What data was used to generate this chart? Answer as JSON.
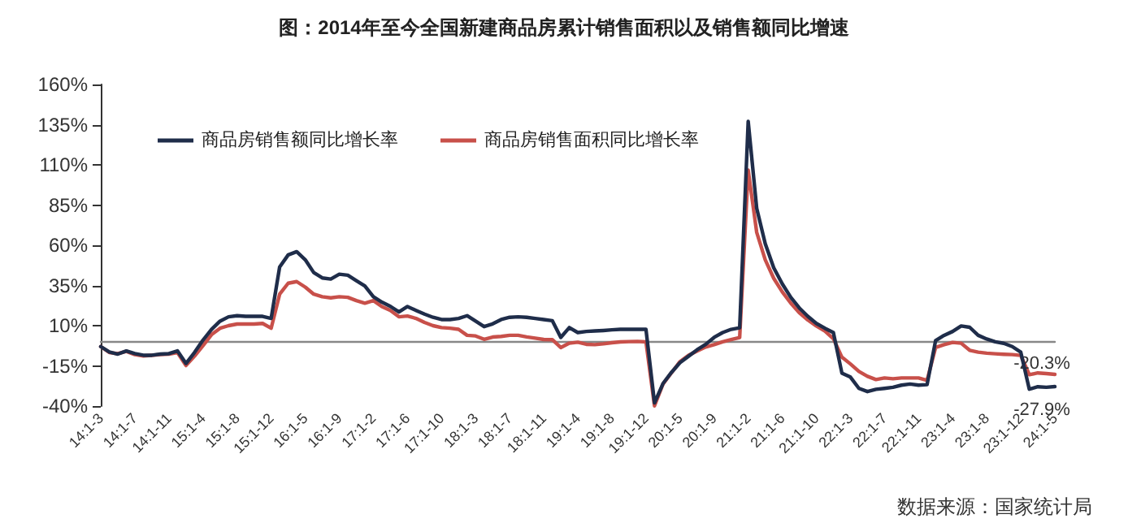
{
  "chart_data": {
    "type": "line",
    "title": "图：2014年至今全国新建商品房累计销售面积以及销售额同比增速",
    "annotations": [
      "数据来源：国家统计局"
    ],
    "categories": [
      "14:1-3",
      null,
      null,
      null,
      "14:1-7",
      null,
      null,
      null,
      "14:1-11",
      null,
      null,
      null,
      "15:1-4",
      null,
      null,
      null,
      "15:1-8",
      null,
      null,
      null,
      "15:1-12",
      null,
      null,
      null,
      "16:1-5",
      null,
      null,
      null,
      "16:1-9",
      null,
      null,
      null,
      "17:1-2",
      null,
      null,
      null,
      "17:1-6",
      null,
      null,
      null,
      "17:1-10",
      null,
      null,
      null,
      "18:1-3",
      null,
      null,
      null,
      "18:1-7",
      null,
      null,
      null,
      "18:1-11",
      null,
      null,
      null,
      "19:1-4",
      null,
      null,
      null,
      "19:1-8",
      null,
      null,
      null,
      "19:1-12",
      null,
      null,
      null,
      "20:1-5",
      null,
      null,
      null,
      "20:1-9",
      null,
      null,
      null,
      "21:1-2",
      null,
      null,
      null,
      "21:1-6",
      null,
      null,
      null,
      "21:1-10",
      null,
      null,
      null,
      "22:1-3",
      null,
      null,
      null,
      "22:1-7",
      null,
      null,
      null,
      "22:1-11",
      null,
      null,
      null,
      "23:1-4",
      null,
      null,
      null,
      "23:1-8",
      null,
      null,
      null,
      "23:1-12",
      null,
      null,
      null,
      "24:1-5"
    ],
    "series": [
      {
        "name": "商品房销售额同比增长率",
        "color": "#1f2d4a",
        "values": [
          -3,
          -6.4,
          -7.7,
          -5.7,
          -7.4,
          -8.4,
          -8.4,
          -7.7,
          -7.4,
          -5.7,
          -13.5,
          -6.7,
          1,
          7.7,
          12.8,
          15.5,
          16.2,
          15.8,
          15.8,
          15.8,
          14.5,
          46.5,
          54,
          56,
          51,
          43,
          39.7,
          39,
          42,
          41.4,
          38,
          34.7,
          28,
          24.6,
          22,
          18.5,
          21.9,
          19.5,
          17.2,
          15.2,
          13.8,
          13.8,
          14.5,
          16.2,
          12.8,
          9.4,
          11.1,
          13.8,
          15.2,
          15.5,
          15.2,
          14.5,
          13.8,
          13.1,
          2.7,
          8.8,
          5.7,
          6.4,
          6.7,
          7,
          7.4,
          7.7,
          7.7,
          7.7,
          7.7,
          -38,
          -26,
          -19,
          -13,
          -9,
          -5,
          -1.7,
          2.7,
          5.7,
          7.7,
          8.7,
          137,
          83,
          61,
          46,
          36,
          27.6,
          21,
          15.8,
          11.4,
          8.4,
          5.7,
          -19.5,
          -22,
          -29,
          -31,
          -29.6,
          -29,
          -28.3,
          -27,
          -26.3,
          -27,
          -26.7,
          0.7,
          4,
          6.4,
          9.8,
          9,
          4,
          1.7,
          0,
          -1,
          -3,
          -6.5,
          -29.5,
          -28,
          -28.3,
          -27.9
        ],
        "value_labels": [
          null,
          null,
          null,
          null,
          null,
          null,
          null,
          null,
          null,
          null,
          null,
          null,
          null,
          null,
          null,
          null,
          null,
          null,
          null,
          null,
          null,
          null,
          null,
          null,
          null,
          null,
          null,
          null,
          null,
          null,
          null,
          null,
          null,
          null,
          null,
          null,
          null,
          null,
          null,
          null,
          null,
          null,
          null,
          null,
          null,
          null,
          null,
          null,
          null,
          null,
          null,
          null,
          null,
          null,
          null,
          null,
          null,
          null,
          null,
          null,
          null,
          null,
          null,
          null,
          null,
          null,
          null,
          null,
          null,
          null,
          null,
          null,
          null,
          null,
          null,
          null,
          null,
          null,
          null,
          null,
          null,
          null,
          null,
          null,
          null,
          null,
          null,
          null,
          null,
          null,
          null,
          null,
          null,
          null,
          null,
          null,
          null,
          null,
          null,
          null,
          null,
          null,
          null,
          null,
          null,
          null,
          null,
          null,
          null,
          null,
          null,
          null,
          "-27.9%"
        ]
      },
      {
        "name": "商品房销售面积同比增长率",
        "color": "#c8504a",
        "values": [
          -3,
          -6.7,
          -7.4,
          -6,
          -8,
          -8.8,
          -8.4,
          -8,
          -7.7,
          -6.7,
          -14.8,
          -9,
          -2.4,
          4.4,
          8.4,
          10,
          11,
          11,
          11,
          11.4,
          8.4,
          29.6,
          36.4,
          37.4,
          34,
          29.6,
          28,
          27.3,
          28,
          27.6,
          25.6,
          24,
          25.6,
          21.9,
          19.5,
          15.5,
          16,
          14.5,
          12,
          10,
          8.8,
          8.4,
          7.7,
          4,
          3.6,
          1.5,
          2.9,
          3.3,
          4,
          4,
          3,
          2.2,
          1.4,
          1.3,
          -3.6,
          -0.9,
          -0.3,
          -1.6,
          -1.8,
          -1.3,
          -0.6,
          -0.1,
          0.1,
          0.2,
          -0.1,
          -39.9,
          -26.3,
          -19.3,
          -12.3,
          -8.4,
          -5.8,
          -3.3,
          -1.8,
          0,
          1.3,
          2.6,
          106.7,
          68,
          51,
          39.4,
          31,
          24,
          18,
          13.5,
          9.8,
          6.7,
          1.9,
          -9.6,
          -13.8,
          -18.5,
          -21.5,
          -23.5,
          -22.5,
          -23,
          -22.5,
          -22.5,
          -22.5,
          -24,
          -3.6,
          -1.8,
          -0.4,
          -0.9,
          -5.3,
          -6.5,
          -7.1,
          -7.5,
          -7.8,
          -8,
          -8.5,
          -20.5,
          -19.4,
          -19.8,
          -20.3
        ],
        "value_labels": [
          null,
          null,
          null,
          null,
          null,
          null,
          null,
          null,
          null,
          null,
          null,
          null,
          null,
          null,
          null,
          null,
          null,
          null,
          null,
          null,
          null,
          null,
          null,
          null,
          null,
          null,
          null,
          null,
          null,
          null,
          null,
          null,
          null,
          null,
          null,
          null,
          null,
          null,
          null,
          null,
          null,
          null,
          null,
          null,
          null,
          null,
          null,
          null,
          null,
          null,
          null,
          null,
          null,
          null,
          null,
          null,
          null,
          null,
          null,
          null,
          null,
          null,
          null,
          null,
          null,
          null,
          null,
          null,
          null,
          null,
          null,
          null,
          null,
          null,
          null,
          null,
          null,
          null,
          null,
          null,
          null,
          null,
          null,
          null,
          null,
          null,
          null,
          null,
          null,
          null,
          null,
          null,
          null,
          null,
          null,
          null,
          null,
          null,
          null,
          null,
          null,
          null,
          null,
          null,
          null,
          null,
          null,
          null,
          null,
          null,
          null,
          null,
          "-20.3%"
        ]
      }
    ],
    "ylim": [
      -40,
      160
    ],
    "yticks": [
      {
        "value": -40,
        "label": "-40%"
      },
      {
        "value": -15,
        "label": "-15%"
      },
      {
        "value": 10,
        "label": "10%"
      },
      {
        "value": 35,
        "label": "35%"
      },
      {
        "value": 60,
        "label": "60%"
      },
      {
        "value": 85,
        "label": "85%"
      },
      {
        "value": 110,
        "label": "110%"
      },
      {
        "value": 135,
        "label": "135%"
      },
      {
        "value": 160,
        "label": "160%"
      }
    ],
    "legend": "top",
    "marker": "none",
    "line_style": "solid"
  }
}
